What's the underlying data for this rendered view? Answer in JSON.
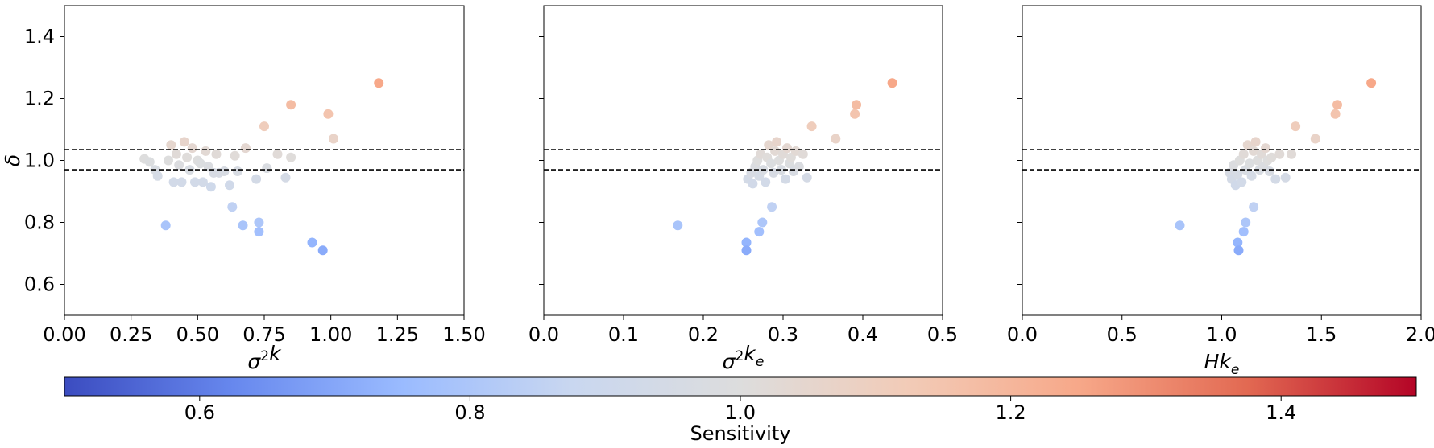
{
  "chart_data": [
    {
      "type": "scatter",
      "xlabel": "σ²k",
      "ylabel": "δ",
      "xlim": [
        0.0,
        1.5
      ],
      "ylim": [
        0.5,
        1.5
      ],
      "xticks": [
        0.0,
        0.25,
        0.5,
        0.75,
        1.0,
        1.25,
        1.5
      ],
      "xtick_labels": [
        "0.00",
        "0.25",
        "0.50",
        "0.75",
        "1.00",
        "1.25",
        "1.50"
      ],
      "yticks": [
        0.6,
        0.8,
        1.0,
        1.2,
        1.4
      ],
      "ytick_labels": [
        "0.6",
        "0.8",
        "1.0",
        "1.2",
        "1.4"
      ],
      "hlines": [
        1.035,
        0.97
      ],
      "grid": false,
      "points": [
        {
          "x": 0.3,
          "y": 1.005,
          "c": 1.0
        },
        {
          "x": 0.32,
          "y": 0.995,
          "c": 0.99
        },
        {
          "x": 0.34,
          "y": 0.97,
          "c": 0.97
        },
        {
          "x": 0.35,
          "y": 0.95,
          "c": 0.95
        },
        {
          "x": 0.38,
          "y": 0.79,
          "c": 0.79
        },
        {
          "x": 0.39,
          "y": 1.0,
          "c": 1.0
        },
        {
          "x": 0.4,
          "y": 1.05,
          "c": 1.05
        },
        {
          "x": 0.41,
          "y": 0.93,
          "c": 0.93
        },
        {
          "x": 0.42,
          "y": 1.02,
          "c": 1.02
        },
        {
          "x": 0.43,
          "y": 0.985,
          "c": 0.985
        },
        {
          "x": 0.44,
          "y": 0.93,
          "c": 0.93
        },
        {
          "x": 0.45,
          "y": 1.06,
          "c": 1.06
        },
        {
          "x": 0.46,
          "y": 1.01,
          "c": 1.01
        },
        {
          "x": 0.47,
          "y": 0.97,
          "c": 0.97
        },
        {
          "x": 0.48,
          "y": 1.04,
          "c": 1.04
        },
        {
          "x": 0.49,
          "y": 0.93,
          "c": 0.93
        },
        {
          "x": 0.5,
          "y": 1.0,
          "c": 1.0
        },
        {
          "x": 0.51,
          "y": 0.99,
          "c": 0.99
        },
        {
          "x": 0.52,
          "y": 0.93,
          "c": 0.93
        },
        {
          "x": 0.53,
          "y": 1.03,
          "c": 1.03
        },
        {
          "x": 0.54,
          "y": 0.98,
          "c": 0.98
        },
        {
          "x": 0.55,
          "y": 0.915,
          "c": 0.915
        },
        {
          "x": 0.56,
          "y": 0.96,
          "c": 0.96
        },
        {
          "x": 0.57,
          "y": 1.02,
          "c": 1.02
        },
        {
          "x": 0.58,
          "y": 0.96,
          "c": 0.96
        },
        {
          "x": 0.6,
          "y": 0.965,
          "c": 0.965
        },
        {
          "x": 0.62,
          "y": 0.92,
          "c": 0.92
        },
        {
          "x": 0.63,
          "y": 0.85,
          "c": 0.85
        },
        {
          "x": 0.64,
          "y": 1.015,
          "c": 1.015
        },
        {
          "x": 0.65,
          "y": 0.965,
          "c": 0.965
        },
        {
          "x": 0.67,
          "y": 0.79,
          "c": 0.79
        },
        {
          "x": 0.68,
          "y": 1.04,
          "c": 1.04
        },
        {
          "x": 0.72,
          "y": 0.94,
          "c": 0.94
        },
        {
          "x": 0.73,
          "y": 0.8,
          "c": 0.8
        },
        {
          "x": 0.73,
          "y": 0.77,
          "c": 0.77
        },
        {
          "x": 0.75,
          "y": 1.11,
          "c": 1.11
        },
        {
          "x": 0.76,
          "y": 0.975,
          "c": 0.975
        },
        {
          "x": 0.8,
          "y": 1.02,
          "c": 1.02
        },
        {
          "x": 0.83,
          "y": 0.945,
          "c": 0.945
        },
        {
          "x": 0.85,
          "y": 1.18,
          "c": 1.18
        },
        {
          "x": 0.85,
          "y": 1.01,
          "c": 1.01
        },
        {
          "x": 0.93,
          "y": 0.735,
          "c": 0.735
        },
        {
          "x": 0.97,
          "y": 0.71,
          "c": 0.71
        },
        {
          "x": 0.99,
          "y": 1.15,
          "c": 1.15
        },
        {
          "x": 1.01,
          "y": 1.07,
          "c": 1.07
        },
        {
          "x": 1.18,
          "y": 1.25,
          "c": 1.25
        }
      ]
    },
    {
      "type": "scatter",
      "xlabel": "σ²kₑ",
      "ylabel": "",
      "xlim": [
        0.0,
        0.5
      ],
      "ylim": [
        0.5,
        1.5
      ],
      "xticks": [
        0.0,
        0.1,
        0.2,
        0.3,
        0.4,
        0.5
      ],
      "xtick_labels": [
        "0.0",
        "0.1",
        "0.2",
        "0.3",
        "0.4",
        "0.5"
      ],
      "yticks": [
        0.6,
        0.8,
        1.0,
        1.2,
        1.4
      ],
      "ytick_labels": [],
      "hlines": [
        1.035,
        0.97
      ],
      "grid": false,
      "points": [
        {
          "x": 0.168,
          "y": 0.79,
          "c": 0.79
        },
        {
          "x": 0.254,
          "y": 0.735,
          "c": 0.735
        },
        {
          "x": 0.254,
          "y": 0.71,
          "c": 0.71
        },
        {
          "x": 0.27,
          "y": 0.77,
          "c": 0.77
        },
        {
          "x": 0.274,
          "y": 0.8,
          "c": 0.8
        },
        {
          "x": 0.286,
          "y": 0.85,
          "c": 0.85
        },
        {
          "x": 0.256,
          "y": 0.94,
          "c": 0.94
        },
        {
          "x": 0.26,
          "y": 0.96,
          "c": 0.96
        },
        {
          "x": 0.262,
          "y": 0.925,
          "c": 0.925
        },
        {
          "x": 0.265,
          "y": 0.98,
          "c": 0.98
        },
        {
          "x": 0.268,
          "y": 1.0,
          "c": 1.0
        },
        {
          "x": 0.27,
          "y": 0.95,
          "c": 0.95
        },
        {
          "x": 0.272,
          "y": 1.02,
          "c": 1.02
        },
        {
          "x": 0.275,
          "y": 0.97,
          "c": 0.97
        },
        {
          "x": 0.278,
          "y": 0.93,
          "c": 0.93
        },
        {
          "x": 0.28,
          "y": 1.01,
          "c": 1.01
        },
        {
          "x": 0.282,
          "y": 1.05,
          "c": 1.05
        },
        {
          "x": 0.285,
          "y": 0.99,
          "c": 0.99
        },
        {
          "x": 0.288,
          "y": 0.96,
          "c": 0.96
        },
        {
          "x": 0.29,
          "y": 1.03,
          "c": 1.03
        },
        {
          "x": 0.292,
          "y": 1.06,
          "c": 1.06
        },
        {
          "x": 0.295,
          "y": 1.0,
          "c": 1.0
        },
        {
          "x": 0.298,
          "y": 0.97,
          "c": 0.97
        },
        {
          "x": 0.3,
          "y": 1.02,
          "c": 1.02
        },
        {
          "x": 0.303,
          "y": 0.94,
          "c": 0.94
        },
        {
          "x": 0.305,
          "y": 1.04,
          "c": 1.04
        },
        {
          "x": 0.308,
          "y": 0.99,
          "c": 0.99
        },
        {
          "x": 0.31,
          "y": 1.01,
          "c": 1.01
        },
        {
          "x": 0.313,
          "y": 0.965,
          "c": 0.965
        },
        {
          "x": 0.316,
          "y": 1.03,
          "c": 1.03
        },
        {
          "x": 0.32,
          "y": 0.98,
          "c": 0.98
        },
        {
          "x": 0.325,
          "y": 1.02,
          "c": 1.02
        },
        {
          "x": 0.33,
          "y": 0.945,
          "c": 0.945
        },
        {
          "x": 0.336,
          "y": 1.11,
          "c": 1.11
        },
        {
          "x": 0.366,
          "y": 1.07,
          "c": 1.07
        },
        {
          "x": 0.39,
          "y": 1.15,
          "c": 1.15
        },
        {
          "x": 0.392,
          "y": 1.18,
          "c": 1.18
        },
        {
          "x": 0.437,
          "y": 1.25,
          "c": 1.25
        }
      ]
    },
    {
      "type": "scatter",
      "xlabel": "Hkₑ",
      "ylabel": "",
      "xlim": [
        0.0,
        2.0
      ],
      "ylim": [
        0.5,
        1.5
      ],
      "xticks": [
        0.0,
        0.5,
        1.0,
        1.5,
        2.0
      ],
      "xtick_labels": [
        "0.0",
        "0.5",
        "1.0",
        "1.5",
        "2.0"
      ],
      "yticks": [
        0.6,
        0.8,
        1.0,
        1.2,
        1.4
      ],
      "ytick_labels": [],
      "hlines": [
        1.035,
        0.97
      ],
      "grid": false,
      "points": [
        {
          "x": 0.79,
          "y": 0.79,
          "c": 0.79
        },
        {
          "x": 1.08,
          "y": 0.735,
          "c": 0.735
        },
        {
          "x": 1.085,
          "y": 0.71,
          "c": 0.71
        },
        {
          "x": 1.11,
          "y": 0.77,
          "c": 0.77
        },
        {
          "x": 1.12,
          "y": 0.8,
          "c": 0.8
        },
        {
          "x": 1.16,
          "y": 0.85,
          "c": 0.85
        },
        {
          "x": 1.04,
          "y": 0.96,
          "c": 0.96
        },
        {
          "x": 1.05,
          "y": 0.94,
          "c": 0.94
        },
        {
          "x": 1.06,
          "y": 0.985,
          "c": 0.985
        },
        {
          "x": 1.07,
          "y": 0.92,
          "c": 0.92
        },
        {
          "x": 1.08,
          "y": 0.955,
          "c": 0.955
        },
        {
          "x": 1.09,
          "y": 1.0,
          "c": 1.0
        },
        {
          "x": 1.1,
          "y": 0.93,
          "c": 0.93
        },
        {
          "x": 1.11,
          "y": 1.02,
          "c": 1.02
        },
        {
          "x": 1.12,
          "y": 0.97,
          "c": 0.97
        },
        {
          "x": 1.13,
          "y": 1.05,
          "c": 1.05
        },
        {
          "x": 1.14,
          "y": 0.99,
          "c": 0.99
        },
        {
          "x": 1.15,
          "y": 0.95,
          "c": 0.95
        },
        {
          "x": 1.16,
          "y": 1.03,
          "c": 1.03
        },
        {
          "x": 1.17,
          "y": 1.06,
          "c": 1.06
        },
        {
          "x": 1.18,
          "y": 1.0,
          "c": 1.0
        },
        {
          "x": 1.19,
          "y": 0.97,
          "c": 0.97
        },
        {
          "x": 1.2,
          "y": 1.02,
          "c": 1.02
        },
        {
          "x": 1.21,
          "y": 0.98,
          "c": 0.98
        },
        {
          "x": 1.22,
          "y": 1.04,
          "c": 1.04
        },
        {
          "x": 1.23,
          "y": 1.0,
          "c": 1.0
        },
        {
          "x": 1.24,
          "y": 0.965,
          "c": 0.965
        },
        {
          "x": 1.25,
          "y": 1.01,
          "c": 1.01
        },
        {
          "x": 1.27,
          "y": 0.94,
          "c": 0.94
        },
        {
          "x": 1.29,
          "y": 1.02,
          "c": 1.02
        },
        {
          "x": 1.32,
          "y": 0.945,
          "c": 0.945
        },
        {
          "x": 1.35,
          "y": 1.02,
          "c": 1.02
        },
        {
          "x": 1.37,
          "y": 1.11,
          "c": 1.11
        },
        {
          "x": 1.47,
          "y": 1.07,
          "c": 1.07
        },
        {
          "x": 1.57,
          "y": 1.15,
          "c": 1.15
        },
        {
          "x": 1.58,
          "y": 1.18,
          "c": 1.18
        },
        {
          "x": 1.75,
          "y": 1.25,
          "c": 1.25
        }
      ]
    }
  ],
  "colorbar": {
    "label": "Sensitivity",
    "cmap": "coolwarm",
    "range": [
      0.5,
      1.5
    ],
    "ticks": [
      0.6,
      0.8,
      1.0,
      1.2,
      1.4
    ],
    "tick_labels": [
      "0.6",
      "0.8",
      "1.0",
      "1.2",
      "1.4"
    ],
    "colors": [
      "#3b4cc0",
      "#6788ee",
      "#9abbff",
      "#c9d7f0",
      "#dddddd",
      "#f2cbb7",
      "#f7a889",
      "#e26952",
      "#b40426"
    ]
  }
}
